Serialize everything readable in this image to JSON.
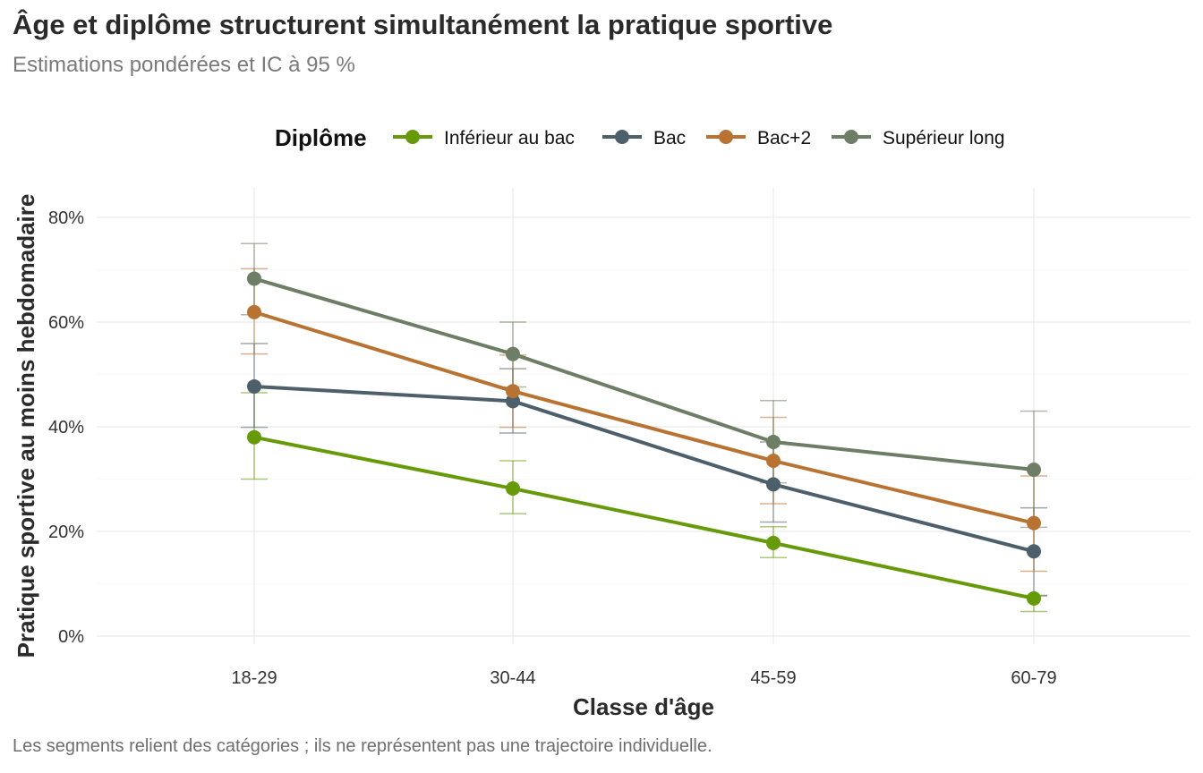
{
  "title": "Âge et diplôme structurent simultanément la pratique sportive",
  "subtitle": "Estimations pondérées et IC à 95 %",
  "caption": "Les segments relient des catégories ; ils ne représentent pas une trajectoire individuelle.",
  "chart_data": {
    "type": "line",
    "title": "Âge et diplôme structurent simultanément la pratique sportive",
    "subtitle": "Estimations pondérées et IC à 95 %",
    "xlabel": "Classe d'âge",
    "ylabel": "Pratique sportive au moins hebdomadaire",
    "categories": [
      "18-29",
      "30-44",
      "45-59",
      "60-79"
    ],
    "ylim": [
      -0.01,
      0.85
    ],
    "yticks": [
      0,
      0.2,
      0.4,
      0.6,
      0.8
    ],
    "ytick_labels": [
      "0%",
      "20%",
      "40%",
      "60%",
      "80%"
    ],
    "grid": true,
    "legend": {
      "title": "Diplôme",
      "placement": "top"
    },
    "series": [
      {
        "name": "Inférieur au bac",
        "color": "#669a0b",
        "values": [
          0.38,
          0.282,
          0.178,
          0.072
        ],
        "ci_low": [
          0.3,
          0.234,
          0.15,
          0.047
        ],
        "ci_high": [
          0.465,
          0.335,
          0.209,
          0.078
        ]
      },
      {
        "name": "Bac",
        "color": "#4c5f6b",
        "values": [
          0.477,
          0.449,
          0.29,
          0.162
        ],
        "ci_low": [
          0.399,
          0.388,
          0.218,
          0.077
        ],
        "ci_high": [
          0.559,
          0.511,
          0.371,
          0.245
        ]
      },
      {
        "name": "Bac+2",
        "color": "#b87333",
        "values": [
          0.619,
          0.468,
          0.335,
          0.216
        ],
        "ci_low": [
          0.539,
          0.399,
          0.253,
          0.124
        ],
        "ci_high": [
          0.702,
          0.537,
          0.418,
          0.306
        ]
      },
      {
        "name": "Supérieur long",
        "color": "#6e7d65",
        "values": [
          0.683,
          0.539,
          0.371,
          0.318
        ],
        "ci_low": [
          0.614,
          0.476,
          0.293,
          0.208
        ],
        "ci_high": [
          0.75,
          0.6,
          0.45,
          0.43
        ]
      }
    ]
  }
}
